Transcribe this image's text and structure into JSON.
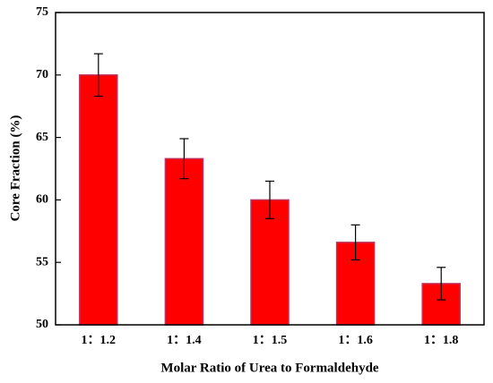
{
  "chart_data": {
    "type": "bar",
    "x_label": "Molar Ratio of Urea to Formaldehyde",
    "y_label": "Core Fraction (%)",
    "categories": [
      "1：1.2",
      "1：1.4",
      "1：1.5",
      "1：1.6",
      "1：1.8"
    ],
    "values": [
      70,
      63.3,
      60,
      56.6,
      53.3
    ],
    "errors": [
      1.7,
      1.6,
      1.5,
      1.4,
      1.3
    ],
    "color": "#ff0000",
    "ylim": [
      50,
      75
    ],
    "yticks": [
      50,
      55,
      60,
      65,
      70,
      75
    ]
  }
}
